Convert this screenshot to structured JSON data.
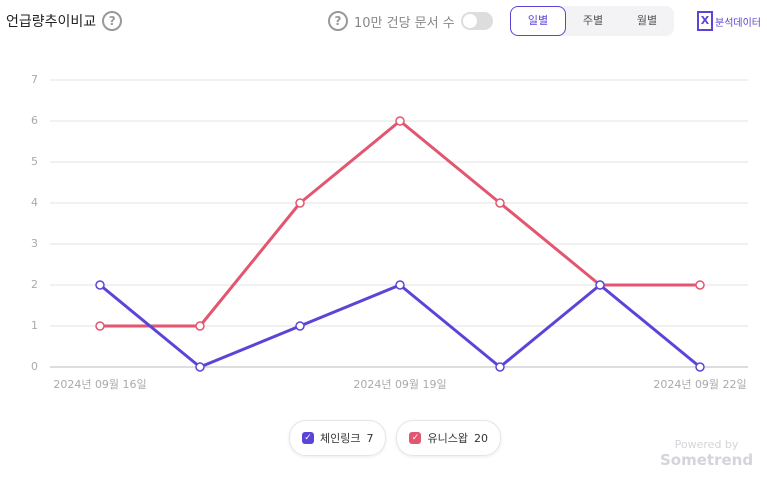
{
  "header": {
    "title": "언급량추이비교",
    "toggle_label": "10만 건당 문서 수",
    "tabs": [
      "일별",
      "주별",
      "월별"
    ],
    "export_label": "분석데이터"
  },
  "chart_data": {
    "type": "line",
    "categories": [
      "2024년 09월 16일",
      null,
      null,
      "2024년 09월 19일",
      null,
      null,
      "2024년 09월 22일"
    ],
    "series": [
      {
        "name": "체인링크",
        "total": 7,
        "color": "#5a45d8",
        "values": [
          2,
          0,
          1,
          2,
          0,
          2,
          0
        ]
      },
      {
        "name": "유니스왑",
        "total": 20,
        "color": "#e2566f",
        "values": [
          1,
          1,
          4,
          6,
          4,
          2,
          2
        ]
      }
    ],
    "ylim": [
      0,
      7
    ],
    "yticks": [
      0,
      1,
      2,
      3,
      4,
      5,
      6,
      7
    ],
    "grid": true
  },
  "footer": {
    "powered": "Powered by",
    "brand": "Sometrend"
  }
}
